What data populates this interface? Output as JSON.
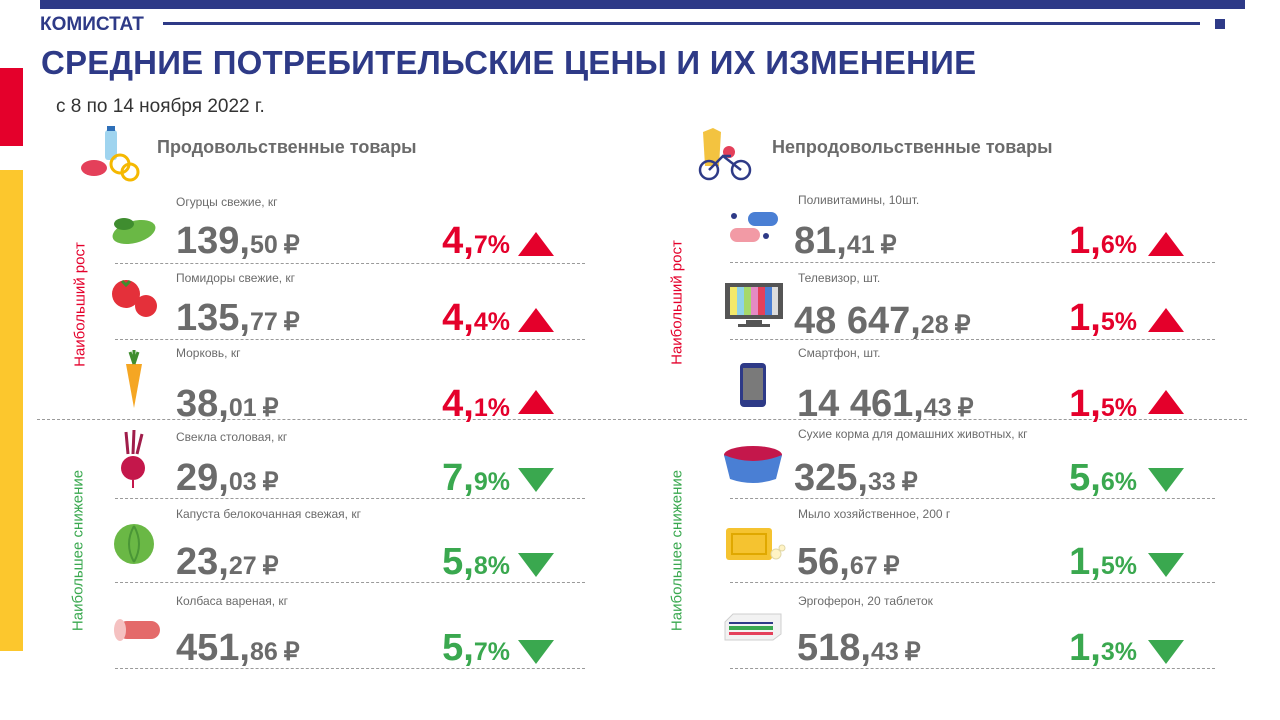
{
  "header": {
    "brand": "КОМИСТАТ",
    "title": "СРЕДНИЕ ПОТРЕБИТЕЛЬСКИЕ ЦЕНЫ И ИХ ИЗМЕНЕНИЕ",
    "period": "с 8 по  14 ноября  2022 г."
  },
  "labels": {
    "growth": "Наибольший рост",
    "decline": "Наибольшее снижение"
  },
  "food": {
    "title": "Продовольственные товары",
    "items": [
      {
        "name": "Огурцы свежие, кг",
        "price_int": "139,",
        "price_dec": "50",
        "pct_int": "4,",
        "pct_dec": "7%",
        "icon": "cucumber-icon",
        "trend": "up"
      },
      {
        "name": "Помидоры свежие, кг",
        "price_int": "135,",
        "price_dec": "77",
        "pct_int": "4,",
        "pct_dec": "4%",
        "icon": "tomato-icon",
        "trend": "up"
      },
      {
        "name": "Морковь, кг",
        "price_int": "38,",
        "price_dec": "01",
        "pct_int": "4,",
        "pct_dec": "1%",
        "icon": "carrot-icon",
        "trend": "up"
      },
      {
        "name": "Свекла столовая,  кг",
        "price_int": "29,",
        "price_dec": "03",
        "pct_int": "7,",
        "pct_dec": "9%",
        "icon": "beet-icon",
        "trend": "down"
      },
      {
        "name": "Капуста белокочанная  свежая, кг",
        "price_int": "23,",
        "price_dec": "27",
        "pct_int": "5,",
        "pct_dec": "8%",
        "icon": "cabbage-icon",
        "trend": "down"
      },
      {
        "name": "Колбаса вареная, кг",
        "price_int": "451,",
        "price_dec": "86",
        "pct_int": "5,",
        "pct_dec": "7%",
        "icon": "sausage-icon",
        "trend": "down"
      }
    ]
  },
  "nonfood": {
    "title": "Непродовольственные товары",
    "items": [
      {
        "name": "Поливитамины,  10шт.",
        "price_int": "81,",
        "price_dec": "41",
        "pct_int": "1,",
        "pct_dec": "6%",
        "icon": "pills-icon",
        "trend": "up"
      },
      {
        "name": "Телевизор,  шт.",
        "price_int": "48 647,",
        "price_dec": "28",
        "pct_int": "1,",
        "pct_dec": "5%",
        "icon": "tv-icon",
        "trend": "up"
      },
      {
        "name": "Смартфон,  шт.",
        "price_int": "14 461,",
        "price_dec": "43",
        "pct_int": "1,",
        "pct_dec": "5%",
        "icon": "smartphone-icon",
        "trend": "up"
      },
      {
        "name": "Сухие корма для домашних животных,  кг",
        "price_int": "325,",
        "price_dec": "33",
        "pct_int": "5,",
        "pct_dec": "6%",
        "icon": "pet-food-icon",
        "trend": "down"
      },
      {
        "name": "Мыло хозяйственное,  200 г",
        "price_int": "56,",
        "price_dec": "67",
        "pct_int": "1,",
        "pct_dec": "5%",
        "icon": "soap-icon",
        "trend": "down"
      },
      {
        "name": "Эргоферон,  20 таблеток",
        "price_int": "518,",
        "price_dec": "43",
        "pct_int": "1,",
        "pct_dec": "3%",
        "icon": "medicine-box-icon",
        "trend": "down"
      }
    ]
  },
  "currency": "₽",
  "colors": {
    "brand": "#2e3a87",
    "up": "#e4002b",
    "down": "#3aa84f",
    "accent_yellow": "#fcc72d"
  }
}
